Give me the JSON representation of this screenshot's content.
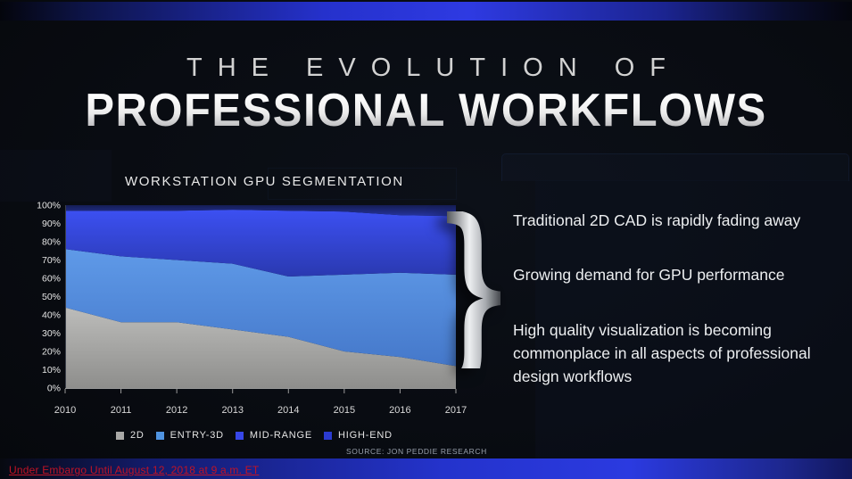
{
  "slide": {
    "kicker": "THE EVOLUTION OF",
    "title": "PROFESSIONAL WORKFLOWS"
  },
  "chart_data": {
    "type": "area",
    "stacked": true,
    "percent_stacked": true,
    "title": "WORKSTATION GPU SEGMENTATION",
    "x": [
      "2010",
      "2011",
      "2012",
      "2013",
      "2014",
      "2015",
      "2016",
      "2017"
    ],
    "y_ticks": [
      "0%",
      "10%",
      "20%",
      "30%",
      "40%",
      "50%",
      "60%",
      "70%",
      "80%",
      "90%",
      "100%"
    ],
    "ylim": [
      0,
      100
    ],
    "grid": false,
    "legend_position": "bottom",
    "series": [
      {
        "name": "2D",
        "values": [
          44,
          36,
          36,
          32,
          28,
          20,
          17,
          12
        ],
        "fill_top": "#bcbcba",
        "fill_bottom": "#8e8e8c",
        "legend_color": "#a8a8a6"
      },
      {
        "name": "ENTRY-3D",
        "values": [
          32,
          36,
          34,
          36,
          33,
          42,
          46,
          50
        ],
        "fill_top": "#5f9ae8",
        "fill_bottom": "#4578ca",
        "legend_color": "#4f93e0"
      },
      {
        "name": "MID-RANGE",
        "values": [
          21,
          25,
          27,
          29.5,
          36,
          34.5,
          31.5,
          32
        ],
        "fill_top": "#3c50f2",
        "fill_bottom": "#2a39b0",
        "legend_color": "#3747e8"
      },
      {
        "name": "HIGH-END",
        "values": [
          3,
          3,
          3,
          2.5,
          3,
          3.5,
          5.5,
          6
        ],
        "fill_top": "#151d54",
        "fill_bottom": "#2634a0",
        "legend_color": "#2b3bd0"
      }
    ],
    "source": "SOURCE: JON PEDDIE RESEARCH"
  },
  "bullets": [
    "Traditional 2D CAD is rapidly fading away",
    "Growing demand for GPU performance",
    "High quality visualization is becoming commonplace in all aspects of professional design workflows"
  ],
  "brace_glyph": "}",
  "footer": {
    "embargo": "Under Embargo Until August 12, 2018 at 9 a.m. ET"
  },
  "colors": {
    "accent_blue": "#2b3ae0",
    "embargo_red": "#c11325"
  }
}
